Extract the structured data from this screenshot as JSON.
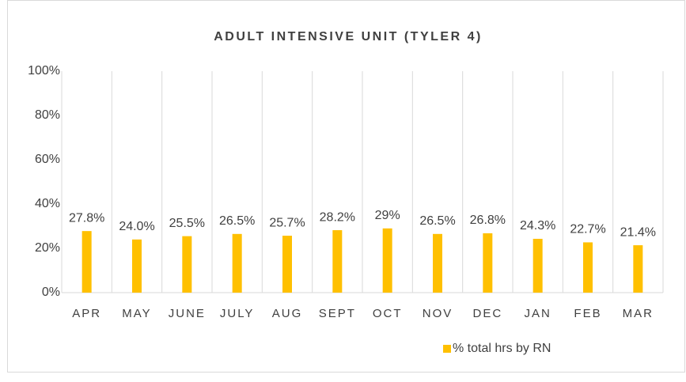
{
  "chart_data": {
    "type": "bar",
    "title": "ADULT INTENSIVE UNIT (TYLER 4)",
    "categories": [
      "APR",
      "MAY",
      "JUNE",
      "JULY",
      "AUG",
      "SEPT",
      "OCT",
      "NOV",
      "DEC",
      "JAN",
      "FEB",
      "MAR"
    ],
    "series": [
      {
        "name": "% total hrs by RN",
        "color": "#ffc000",
        "values": [
          27.8,
          24.0,
          25.5,
          26.5,
          25.7,
          28.2,
          29,
          26.5,
          26.8,
          24.3,
          22.7,
          21.4
        ],
        "value_labels": [
          "27.8%",
          "24.0%",
          "25.5%",
          "26.5%",
          "25.7%",
          "28.2%",
          "29%",
          "26.5%",
          "26.8%",
          "24.3%",
          "22.7%",
          "21.4%"
        ]
      }
    ],
    "ylim": [
      0,
      100
    ],
    "yticks": [
      {
        "value": 0,
        "label": "0%"
      },
      {
        "value": 20,
        "label": "20%"
      },
      {
        "value": 40,
        "label": "40%"
      },
      {
        "value": 60,
        "label": "60%"
      },
      {
        "value": 80,
        "label": "80%"
      },
      {
        "value": 100,
        "label": "100%"
      }
    ],
    "legend": "bottom"
  }
}
